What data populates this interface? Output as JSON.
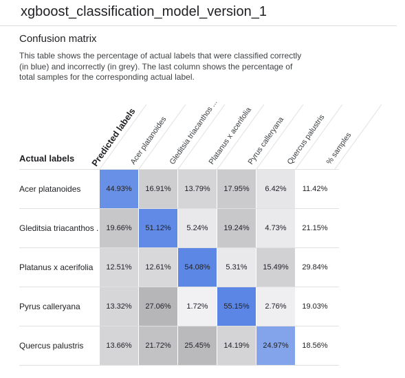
{
  "model_name": "xgboost_classification_model_version_1",
  "section_title": "Confusion matrix",
  "description": "This table shows the percentage of actual labels that were classified correctly (in blue) and incorrectly (in grey). The last column shows the percentage of total samples for the corresponding actual label.",
  "predicted_labels_heading": "Predicted labels",
  "actual_labels_heading": "Actual labels",
  "column_headers": [
    "Acer platanoides",
    "Gleditsia triacanthos ...",
    "Platanus x acerifolia",
    "Pyrus calleryana",
    "Quercus palustris",
    "% samples"
  ],
  "rows": [
    {
      "label": "Acer platanoides",
      "values": [
        "44.93%",
        "16.91%",
        "13.79%",
        "17.95%",
        "6.42%"
      ],
      "samples": "11.42%"
    },
    {
      "label": "Gleditsia triacanthos ...",
      "values": [
        "19.66%",
        "51.12%",
        "5.24%",
        "19.24%",
        "4.73%"
      ],
      "samples": "21.15%"
    },
    {
      "label": "Platanus x acerifolia",
      "values": [
        "12.51%",
        "12.61%",
        "54.08%",
        "5.31%",
        "15.49%"
      ],
      "samples": "29.84%"
    },
    {
      "label": "Pyrus calleryana",
      "values": [
        "13.32%",
        "27.06%",
        "1.72%",
        "55.15%",
        "2.76%"
      ],
      "samples": "19.03%"
    },
    {
      "label": "Quercus palustris",
      "values": [
        "13.66%",
        "21.72%",
        "25.45%",
        "14.19%",
        "24.97%"
      ],
      "samples": "18.56%"
    }
  ],
  "colors": {
    "correct_blue": "#5b86e5",
    "incorrect_grey": "#c6c8cc",
    "divider": "#e0e0e0"
  }
}
